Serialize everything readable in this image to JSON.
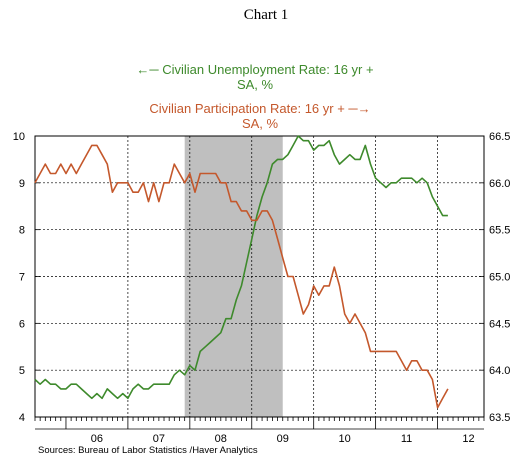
{
  "title": "Chart 1",
  "source": "Sources:  Bureau of Labor Statistics /Haver Analytics",
  "legend": {
    "unemployment_line1": "Civilian Unemployment Rate: 16 yr +",
    "unemployment_line2": "SA, %",
    "participation_line1": "Civilian Participation Rate: 16 yr +",
    "participation_line2": "SA, %"
  },
  "colors": {
    "unemployment": "#3e8a2c",
    "participation": "#c4582c",
    "recession": "#bfbfbf"
  },
  "chart_data": {
    "type": "line",
    "x_tick_labels": [
      "06",
      "07",
      "08",
      "09",
      "10",
      "11",
      "12"
    ],
    "x_range": [
      2005.5,
      2012.75
    ],
    "recession": {
      "start": 2007.917,
      "end": 2009.5
    },
    "left_axis": {
      "ylim": [
        4,
        10
      ],
      "ticks": [
        "4",
        "5",
        "6",
        "7",
        "8",
        "9",
        "10"
      ]
    },
    "right_axis": {
      "ylim": [
        63.5,
        66.5
      ],
      "ticks": [
        "63.5",
        "64.0",
        "64.5",
        "65.0",
        "65.5",
        "66.0",
        "66.5"
      ]
    },
    "grid": true,
    "series": [
      {
        "name": "Civilian Unemployment Rate: 16 yr + SA, %",
        "axis": "left",
        "x": [
          2005.5,
          2005.583,
          2005.667,
          2005.75,
          2005.833,
          2005.917,
          2006.0,
          2006.083,
          2006.167,
          2006.25,
          2006.333,
          2006.417,
          2006.5,
          2006.583,
          2006.667,
          2006.75,
          2006.833,
          2006.917,
          2007.0,
          2007.083,
          2007.167,
          2007.25,
          2007.333,
          2007.417,
          2007.5,
          2007.583,
          2007.667,
          2007.75,
          2007.833,
          2007.917,
          2008.0,
          2008.083,
          2008.167,
          2008.25,
          2008.333,
          2008.417,
          2008.5,
          2008.583,
          2008.667,
          2008.75,
          2008.833,
          2008.917,
          2009.0,
          2009.083,
          2009.167,
          2009.25,
          2009.333,
          2009.417,
          2009.5,
          2009.583,
          2009.667,
          2009.75,
          2009.833,
          2009.917,
          2010.0,
          2010.083,
          2010.167,
          2010.25,
          2010.333,
          2010.417,
          2010.5,
          2010.583,
          2010.667,
          2010.75,
          2010.833,
          2010.917,
          2011.0,
          2011.083,
          2011.167,
          2011.25,
          2011.333,
          2011.417,
          2011.5,
          2011.583,
          2011.667,
          2011.75,
          2011.833,
          2011.917,
          2012.0,
          2012.083,
          2012.167
        ],
        "values": [
          4.8,
          4.7,
          4.8,
          4.7,
          4.7,
          4.6,
          4.6,
          4.7,
          4.7,
          4.6,
          4.5,
          4.4,
          4.5,
          4.4,
          4.6,
          4.5,
          4.4,
          4.5,
          4.4,
          4.6,
          4.7,
          4.6,
          4.6,
          4.7,
          4.7,
          4.7,
          4.7,
          4.9,
          5.0,
          4.9,
          5.1,
          5.0,
          5.4,
          5.5,
          5.6,
          5.7,
          5.8,
          6.1,
          6.1,
          6.5,
          6.8,
          7.3,
          7.8,
          8.3,
          8.7,
          9.0,
          9.4,
          9.5,
          9.5,
          9.6,
          9.8,
          10.0,
          9.9,
          9.9,
          9.7,
          9.8,
          9.8,
          9.9,
          9.6,
          9.4,
          9.5,
          9.6,
          9.5,
          9.5,
          9.8,
          9.4,
          9.1,
          9.0,
          8.9,
          9.0,
          9.0,
          9.1,
          9.1,
          9.1,
          9.0,
          9.1,
          9.0,
          8.7,
          8.5,
          8.3,
          8.3
        ]
      },
      {
        "name": "Civilian Participation Rate: 16 yr + SA, %",
        "axis": "right",
        "x": [
          2005.5,
          2005.583,
          2005.667,
          2005.75,
          2005.833,
          2005.917,
          2006.0,
          2006.083,
          2006.167,
          2006.25,
          2006.333,
          2006.417,
          2006.5,
          2006.583,
          2006.667,
          2006.75,
          2006.833,
          2006.917,
          2007.0,
          2007.083,
          2007.167,
          2007.25,
          2007.333,
          2007.417,
          2007.5,
          2007.583,
          2007.667,
          2007.75,
          2007.833,
          2007.917,
          2008.0,
          2008.083,
          2008.167,
          2008.25,
          2008.333,
          2008.417,
          2008.5,
          2008.583,
          2008.667,
          2008.75,
          2008.833,
          2008.917,
          2009.0,
          2009.083,
          2009.167,
          2009.25,
          2009.333,
          2009.417,
          2009.5,
          2009.583,
          2009.667,
          2009.75,
          2009.833,
          2009.917,
          2010.0,
          2010.083,
          2010.167,
          2010.25,
          2010.333,
          2010.417,
          2010.5,
          2010.583,
          2010.667,
          2010.75,
          2010.833,
          2010.917,
          2011.0,
          2011.083,
          2011.167,
          2011.25,
          2011.333,
          2011.417,
          2011.5,
          2011.583,
          2011.667,
          2011.75,
          2011.833,
          2011.917,
          2012.0,
          2012.083,
          2012.167
        ],
        "values": [
          66.0,
          66.1,
          66.2,
          66.1,
          66.1,
          66.2,
          66.1,
          66.2,
          66.1,
          66.2,
          66.3,
          66.4,
          66.4,
          66.3,
          66.2,
          65.9,
          66.0,
          66.0,
          66.0,
          65.9,
          65.9,
          66.0,
          65.8,
          66.0,
          65.8,
          66.0,
          66.0,
          66.2,
          66.1,
          66.0,
          66.1,
          65.9,
          66.1,
          66.1,
          66.1,
          66.1,
          66.0,
          66.0,
          65.8,
          65.8,
          65.7,
          65.7,
          65.6,
          65.6,
          65.7,
          65.7,
          65.6,
          65.4,
          65.2,
          65.0,
          65.0,
          64.8,
          64.6,
          64.7,
          64.9,
          64.8,
          64.9,
          64.9,
          65.1,
          64.9,
          64.6,
          64.5,
          64.6,
          64.5,
          64.4,
          64.2,
          64.2,
          64.2,
          64.2,
          64.2,
          64.2,
          64.1,
          64.0,
          64.1,
          64.1,
          64.0,
          64.0,
          63.9,
          63.6,
          63.7,
          63.8
        ]
      }
    ]
  }
}
